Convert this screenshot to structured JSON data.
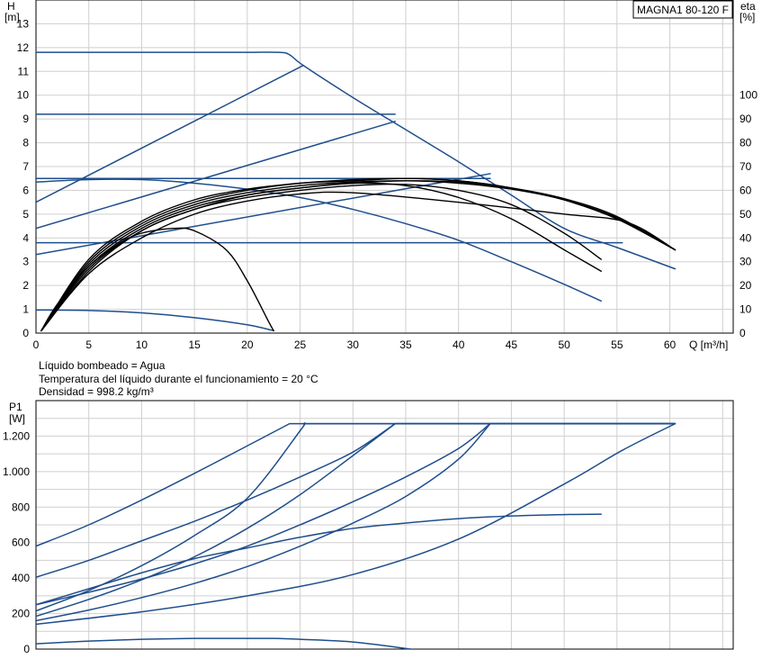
{
  "chart_data": [
    {
      "type": "line",
      "title": "MAGNA1 80-120 F",
      "ylabel_line1": "H",
      "ylabel_line2": "[m]",
      "y2label_line1": "eta",
      "y2label_line2": "[%]",
      "xlabel": "Q [m³/h]",
      "xlim": [
        0,
        66
      ],
      "ylim": [
        0,
        14
      ],
      "y2lim": [
        0,
        140
      ],
      "xticks": [
        0,
        5,
        10,
        15,
        20,
        25,
        30,
        35,
        40,
        45,
        50,
        55,
        60
      ],
      "yticks": [
        0,
        1,
        2,
        3,
        4,
        5,
        6,
        7,
        8,
        9,
        10,
        11,
        12,
        13
      ],
      "y2ticks": [
        0,
        10,
        20,
        30,
        40,
        50,
        60,
        70,
        80,
        90,
        100
      ],
      "grid": true,
      "series": [
        {
          "group": "head",
          "color": "#1f4e8c",
          "x": [
            0,
            5,
            10,
            15,
            20,
            23,
            24,
            25.3,
            30,
            35,
            40,
            45,
            50,
            55,
            60.5
          ],
          "y": [
            11.8,
            11.8,
            11.8,
            11.8,
            11.8,
            11.8,
            11.7,
            11.25,
            9.9,
            8.55,
            7.2,
            5.8,
            4.4,
            3.6,
            2.7
          ]
        },
        {
          "group": "head",
          "color": "#1f4e8c",
          "x": [
            0,
            20,
            34
          ],
          "y": [
            9.2,
            9.2,
            9.2
          ]
        },
        {
          "group": "head",
          "color": "#1f4e8c",
          "x": [
            0,
            20,
            43
          ],
          "y": [
            6.5,
            6.5,
            6.5
          ]
        },
        {
          "group": "head",
          "color": "#1f4e8c",
          "x": [
            0,
            30,
            55.5
          ],
          "y": [
            3.8,
            3.8,
            3.8
          ]
        },
        {
          "group": "head",
          "color": "#1f4e8c",
          "x": [
            0,
            5,
            10,
            15,
            20,
            25,
            30,
            35,
            40,
            45,
            50,
            53.5
          ],
          "y": [
            6.35,
            6.45,
            6.45,
            6.3,
            6.05,
            5.7,
            5.2,
            4.6,
            3.9,
            3.0,
            2.05,
            1.35
          ]
        },
        {
          "group": "head",
          "color": "#1f4e8c",
          "x": [
            0,
            5,
            10,
            15,
            20,
            22.5
          ],
          "y": [
            0.97,
            0.95,
            0.85,
            0.65,
            0.35,
            0.1
          ]
        },
        {
          "group": "system",
          "color": "#1f4e8c",
          "x": [
            0,
            25.3
          ],
          "y": [
            5.5,
            11.25
          ]
        },
        {
          "group": "system",
          "color": "#1f4e8c",
          "x": [
            0,
            34
          ],
          "y": [
            4.4,
            8.9
          ]
        },
        {
          "group": "system",
          "color": "#1f4e8c",
          "x": [
            0,
            43
          ],
          "y": [
            3.3,
            6.7
          ]
        },
        {
          "group": "efficiency",
          "color": "#000000",
          "x": [
            0.5,
            2,
            5,
            8,
            10,
            13,
            15,
            18,
            20,
            22,
            22.5
          ],
          "y": [
            1,
            12,
            28,
            38,
            42,
            44,
            43,
            35,
            22,
            5,
            1
          ]
        },
        {
          "group": "efficiency",
          "color": "#000000",
          "x": [
            0.5,
            5,
            10,
            15,
            20,
            25,
            30,
            35,
            40,
            45,
            50,
            53.5
          ],
          "y": [
            1,
            28,
            44,
            53,
            58,
            61,
            63,
            62,
            57,
            48,
            35,
            26
          ]
        },
        {
          "group": "efficiency",
          "color": "#000000",
          "x": [
            0.5,
            5,
            10,
            15,
            20,
            25,
            30,
            35,
            40,
            45,
            50,
            55,
            60.5
          ],
          "y": [
            1,
            30,
            46,
            55,
            60,
            63,
            64,
            65,
            64,
            61,
            56,
            48,
            35
          ]
        },
        {
          "group": "efficiency",
          "color": "#000000",
          "x": [
            0.5,
            5,
            10,
            15,
            20,
            25,
            30,
            35,
            40,
            45,
            50,
            55,
            60.5
          ],
          "y": [
            1,
            29,
            45,
            54,
            59,
            62,
            63.5,
            64,
            63,
            60.5,
            56,
            48.5,
            35
          ]
        },
        {
          "group": "efficiency",
          "color": "#000000",
          "x": [
            0.5,
            5,
            10,
            15,
            20,
            25,
            30,
            35,
            40,
            45,
            50,
            55,
            60.5
          ],
          "y": [
            1,
            27,
            43,
            52,
            58,
            61,
            63,
            64,
            63.5,
            61,
            56.5,
            49,
            35
          ]
        },
        {
          "group": "efficiency",
          "color": "#000000",
          "x": [
            0.5,
            5,
            10,
            15,
            20,
            25,
            30,
            35,
            40,
            45,
            50,
            55,
            60.5
          ],
          "y": [
            1,
            31,
            47,
            56,
            60.5,
            63,
            64.5,
            65,
            64,
            61,
            56,
            48,
            35
          ]
        },
        {
          "group": "efficiency",
          "color": "#000000",
          "x": [
            0.5,
            5,
            10,
            15,
            20,
            25,
            30,
            35,
            40,
            45,
            50,
            53.5
          ],
          "y": [
            1,
            26,
            43,
            52,
            57,
            60,
            62,
            62.5,
            60,
            54,
            42,
            31
          ]
        },
        {
          "group": "efficiency",
          "color": "#000000",
          "x": [
            0.5,
            5,
            10,
            15,
            20,
            25,
            30,
            40,
            50,
            56,
            60.5
          ],
          "y": [
            1,
            25,
            40,
            50,
            55.5,
            58.5,
            59,
            55,
            50,
            46.5,
            35
          ]
        }
      ]
    },
    {
      "type": "line",
      "ylabel_line1": "P1",
      "ylabel_line2": "[W]",
      "xlim": [
        0,
        66
      ],
      "ylim": [
        0,
        1400
      ],
      "xticks": [
        0,
        5,
        10,
        15,
        20,
        25,
        30,
        35,
        40,
        45,
        50,
        55,
        60
      ],
      "yticks": [
        0,
        200,
        400,
        600,
        800,
        1000,
        1200
      ],
      "ytick_labels": [
        "0",
        "200",
        "400",
        "600",
        "800",
        "1.000",
        "1.200"
      ],
      "grid": true,
      "series": [
        {
          "x": [
            0,
            5,
            10,
            15,
            20,
            24,
            60.5
          ],
          "y": [
            580,
            700,
            840,
            990,
            1145,
            1270,
            1270
          ]
        },
        {
          "x": [
            0,
            5,
            10,
            15,
            20,
            25,
            30,
            34,
            60.5
          ],
          "y": [
            405,
            500,
            610,
            720,
            840,
            970,
            1110,
            1270,
            1270
          ]
        },
        {
          "x": [
            0,
            5,
            10,
            15,
            20,
            25,
            30,
            35,
            40,
            43,
            60.5
          ],
          "y": [
            250,
            320,
            395,
            480,
            580,
            700,
            830,
            970,
            1130,
            1270,
            1270
          ]
        },
        {
          "x": [
            0,
            5,
            10,
            15,
            20,
            25,
            25.3,
            60.5
          ],
          "y": [
            215,
            330,
            470,
            640,
            850,
            1230,
            1270,
            1270
          ]
        },
        {
          "x": [
            0,
            5,
            10,
            15,
            20,
            25,
            30,
            34,
            60.5
          ],
          "y": [
            185,
            280,
            390,
            520,
            680,
            870,
            1090,
            1270,
            1270
          ]
        },
        {
          "x": [
            0,
            5,
            10,
            15,
            20,
            25,
            30,
            35,
            40,
            43,
            60.5
          ],
          "y": [
            160,
            220,
            290,
            370,
            465,
            580,
            710,
            860,
            1070,
            1270,
            1270
          ]
        },
        {
          "x": [
            0,
            10,
            20,
            30,
            40,
            50,
            55.5,
            60.5
          ],
          "y": [
            140,
            210,
            300,
            420,
            620,
            930,
            1120,
            1270
          ]
        },
        {
          "x": [
            0,
            5,
            10,
            15,
            20,
            25,
            30,
            35,
            40,
            45,
            50,
            53.5
          ],
          "y": [
            250,
            340,
            430,
            510,
            570,
            630,
            680,
            710,
            735,
            750,
            758,
            760
          ]
        },
        {
          "x": [
            0,
            5,
            10,
            15,
            20,
            22.5,
            25,
            30,
            35.5
          ],
          "y": [
            30,
            45,
            55,
            60,
            60,
            60,
            55,
            40,
            0
          ]
        }
      ]
    }
  ],
  "notes": {
    "line1": "Líquido bombeado = Agua",
    "line2": "Temperatura del líquido durante el funcionamiento = 20 °C",
    "line3": "Densidad = 998.2 kg/m³"
  }
}
